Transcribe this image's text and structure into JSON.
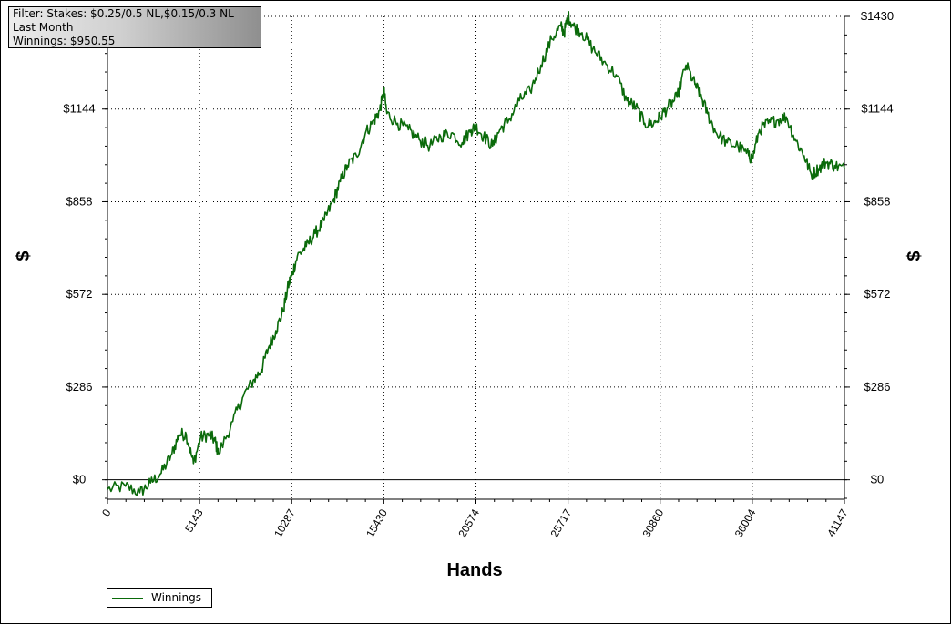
{
  "filter": {
    "line1": "Filter: Stakes: $0.25/0.5 NL,$0.15/0.3 NL",
    "line2": "Last Month",
    "line3": "Winnings: $950.55"
  },
  "colors": {
    "series": "#0a6a0a",
    "grid": "#000000",
    "background": "#ffffff"
  },
  "chart_data": {
    "type": "line",
    "xlabel": "Hands",
    "ylabel": "$",
    "ylabel_right": "$",
    "xlim": [
      0,
      41147
    ],
    "ylim": [
      -60,
      1430
    ],
    "x_ticks": [
      0,
      5143,
      10287,
      15430,
      20574,
      25717,
      30860,
      36004,
      41147
    ],
    "y_ticks": [
      {
        "value": 0,
        "label": "$0"
      },
      {
        "value": 286,
        "label": "$286"
      },
      {
        "value": 572,
        "label": "$572"
      },
      {
        "value": 858,
        "label": "$858"
      },
      {
        "value": 1144,
        "label": "$1144"
      },
      {
        "value": 1430,
        "label": "$1430"
      }
    ],
    "grid": true,
    "legend_position": "bottom-left",
    "series": [
      {
        "name": "Winnings",
        "x": [
          0,
          1000,
          1800,
          2400,
          3000,
          3600,
          4000,
          4400,
          4800,
          5200,
          5700,
          6000,
          6200,
          7000,
          7600,
          8200,
          8600,
          9000,
          9400,
          9800,
          10100,
          10287,
          10600,
          11100,
          11600,
          12100,
          12600,
          13000,
          13400,
          13900,
          14400,
          14900,
          15200,
          15430,
          15600,
          16200,
          16800,
          17400,
          18000,
          18600,
          19200,
          19800,
          20300,
          20574,
          21000,
          21500,
          21900,
          22400,
          23000,
          23600,
          24200,
          24800,
          25300,
          25500,
          25717,
          26000,
          26500,
          27100,
          27700,
          28400,
          29000,
          29500,
          30000,
          30500,
          30860,
          31300,
          31800,
          32300,
          32800,
          33100,
          33500,
          34000,
          34600,
          35200,
          35800,
          36004,
          36400,
          36900,
          37400,
          37900,
          38400,
          38900,
          39300,
          39700,
          40100,
          40600,
          41147
        ],
        "values": [
          -30,
          -20,
          -40,
          -10,
          20,
          80,
          140,
          140,
          50,
          130,
          140,
          120,
          80,
          180,
          260,
          310,
          340,
          410,
          460,
          520,
          600,
          630,
          690,
          720,
          760,
          800,
          860,
          920,
          970,
          1000,
          1070,
          1110,
          1140,
          1200,
          1130,
          1100,
          1080,
          1050,
          1030,
          1060,
          1070,
          1040,
          1080,
          1090,
          1060,
          1030,
          1080,
          1110,
          1170,
          1200,
          1280,
          1360,
          1400,
          1380,
          1430,
          1400,
          1380,
          1330,
          1290,
          1250,
          1170,
          1150,
          1100,
          1100,
          1120,
          1150,
          1180,
          1280,
          1220,
          1190,
          1130,
          1070,
          1040,
          1030,
          1000,
          990,
          1080,
          1100,
          1110,
          1120,
          1050,
          1000,
          940,
          960,
          980,
          970,
          960
        ]
      }
    ]
  }
}
